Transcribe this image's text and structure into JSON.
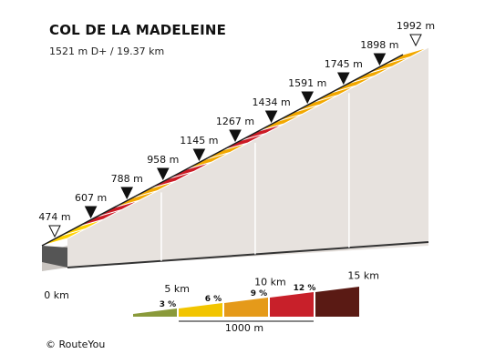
{
  "header": {
    "title": "COL DE LA MADELEINE",
    "subtitle": "1521 m D+ / 19.37 km"
  },
  "footer": {
    "credit": "© RouteYou"
  },
  "chart_data": {
    "type": "area",
    "title": "COL DE LA MADELEINE",
    "subtitle": "1521 m D+ / 19.37 km",
    "x_unit": "km",
    "y_unit": "m",
    "xlim": [
      0,
      19.37
    ],
    "ylim": [
      474,
      1992
    ],
    "x_ticks": [
      {
        "value": 0,
        "label": "0 km"
      },
      {
        "value": 5,
        "label": "5 km"
      },
      {
        "value": 10,
        "label": "10 km"
      },
      {
        "value": 15,
        "label": "15 km"
      }
    ],
    "markers": [
      {
        "x": 0,
        "elevation": 474,
        "label": "474 m",
        "kind": "start"
      },
      {
        "x": 1,
        "elevation": 607,
        "label": "607 m",
        "kind": "km"
      },
      {
        "x": 2,
        "elevation": 788,
        "label": "788 m",
        "kind": "km"
      },
      {
        "x": 3,
        "elevation": 958,
        "label": "958 m",
        "kind": "km"
      },
      {
        "x": 4,
        "elevation": 1145,
        "label": "1145 m",
        "kind": "km"
      },
      {
        "x": 5,
        "elevation": 1267,
        "label": "1267 m",
        "kind": "km"
      },
      {
        "x": 6,
        "elevation": 1434,
        "label": "1434 m",
        "kind": "km"
      },
      {
        "x": 7,
        "elevation": 1591,
        "label": "1591 m",
        "kind": "km"
      },
      {
        "x": 8,
        "elevation": 1745,
        "label": "1745 m",
        "kind": "km"
      },
      {
        "x": 9,
        "elevation": 1898,
        "label": "1898 m",
        "kind": "km"
      },
      {
        "x": 10,
        "elevation": 1992,
        "label": "1992 m",
        "kind": "end"
      }
    ],
    "segments": [
      {
        "from": 0,
        "to": 1,
        "grade_class": 6
      },
      {
        "from": 1,
        "to": 2,
        "grade_class": 9
      },
      {
        "from": 2,
        "to": 3,
        "grade_class": 6
      },
      {
        "from": 3,
        "to": 4,
        "grade_class": 9
      },
      {
        "from": 4,
        "to": 5,
        "grade_class": 6
      },
      {
        "from": 5,
        "to": 6,
        "grade_class": 9
      },
      {
        "from": 6,
        "to": 7,
        "grade_class": 6
      },
      {
        "from": 7,
        "to": 8,
        "grade_class": 6
      },
      {
        "from": 8,
        "to": 9,
        "grade_class": 6
      },
      {
        "from": 9,
        "to": 10,
        "grade_class": 6
      }
    ],
    "legend": {
      "items": [
        {
          "label": "3 %",
          "color": "#8a9a3a"
        },
        {
          "label": "6 %",
          "color": "#f2c500"
        },
        {
          "label": "9 %",
          "color": "#e59a1a"
        },
        {
          "label": "12 %",
          "color": "#c8202a"
        },
        {
          "label": "",
          "color": "#5a1a14"
        }
      ],
      "scale_label": "1000 m"
    },
    "colors": {
      "grade_6": "#f2a800",
      "grade_9": "#cc1a24",
      "grade_low": "#ffd100",
      "wall": "#e7e2de",
      "base_dark": "#333333",
      "top_edge": "#1a1a1a"
    }
  }
}
